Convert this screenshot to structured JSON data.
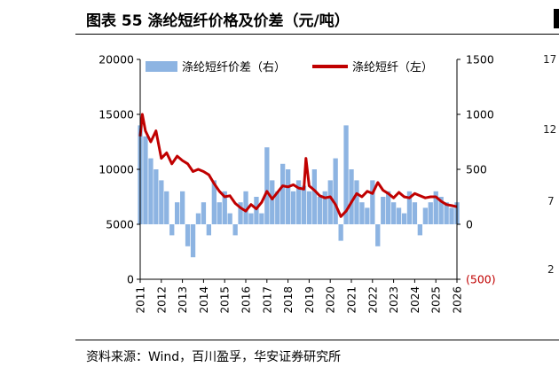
{
  "chart_data": {
    "type": "bar+line",
    "title": "图表 55 涤纶短纤价格及价差（元/吨）",
    "source": "资料来源：Wind，百川盈孚，华安证券研究所",
    "x_tick_labels": [
      "2011",
      "2012",
      "2013",
      "2014",
      "2015",
      "2016",
      "2017",
      "2018",
      "2019",
      "2020",
      "2021",
      "2022",
      "2023",
      "2024",
      "2025",
      "2026"
    ],
    "x_range": [
      2011,
      2026
    ],
    "left_axis": {
      "range": [
        0,
        20000
      ],
      "ticks": [
        0,
        5000,
        10000,
        15000,
        20000
      ]
    },
    "right_axis": {
      "range": [
        -500,
        1500
      ],
      "ticks": [
        -500,
        0,
        500,
        1000,
        1500
      ],
      "tick_labels": [
        "(500)",
        "0",
        "500",
        "1000",
        "1500"
      ],
      "negative_color": "#c00000"
    },
    "series": [
      {
        "name": "涤纶短纤价差（右）",
        "type": "bar",
        "axis": "right",
        "color": "#8db4e2",
        "x": [
          2011.0,
          2011.25,
          2011.5,
          2011.75,
          2012.0,
          2012.25,
          2012.5,
          2012.75,
          2013.0,
          2013.25,
          2013.5,
          2013.75,
          2014.0,
          2014.25,
          2014.5,
          2014.75,
          2015.0,
          2015.25,
          2015.5,
          2015.75,
          2016.0,
          2016.25,
          2016.5,
          2016.75,
          2017.0,
          2017.25,
          2017.5,
          2017.75,
          2018.0,
          2018.25,
          2018.5,
          2018.75,
          2019.0,
          2019.25,
          2019.5,
          2019.75,
          2020.0,
          2020.25,
          2020.5,
          2020.75,
          2021.0,
          2021.25,
          2021.5,
          2021.75,
          2022.0,
          2022.25,
          2022.5,
          2022.75,
          2023.0,
          2023.25,
          2023.5,
          2023.75,
          2024.0,
          2024.25,
          2024.5,
          2024.75,
          2025.0,
          2025.25,
          2025.5,
          2025.75,
          2026.0
        ],
        "values": [
          900,
          800,
          600,
          500,
          400,
          300,
          -100,
          200,
          300,
          -200,
          -300,
          100,
          200,
          -100,
          400,
          200,
          300,
          100,
          -100,
          200,
          300,
          100,
          250,
          100,
          700,
          400,
          300,
          550,
          500,
          300,
          400,
          350,
          300,
          500,
          250,
          300,
          400,
          600,
          -150,
          900,
          500,
          400,
          200,
          150,
          400,
          -200,
          250,
          300,
          200,
          150,
          100,
          300,
          200,
          -100,
          150,
          200,
          300,
          250,
          200,
          150,
          200
        ]
      },
      {
        "name": "涤纶短纤（左）",
        "type": "line",
        "axis": "left",
        "color": "#c00000",
        "x": [
          2011.0,
          2011.1,
          2011.25,
          2011.5,
          2011.75,
          2012.0,
          2012.25,
          2012.5,
          2012.75,
          2013.0,
          2013.25,
          2013.5,
          2013.75,
          2014.0,
          2014.25,
          2014.5,
          2014.75,
          2015.0,
          2015.25,
          2015.5,
          2015.75,
          2016.0,
          2016.25,
          2016.5,
          2016.75,
          2017.0,
          2017.25,
          2017.5,
          2017.75,
          2018.0,
          2018.25,
          2018.5,
          2018.75,
          2018.85,
          2019.0,
          2019.25,
          2019.5,
          2019.75,
          2020.0,
          2020.25,
          2020.5,
          2020.75,
          2021.0,
          2021.25,
          2021.5,
          2021.75,
          2022.0,
          2022.25,
          2022.5,
          2022.75,
          2023.0,
          2023.25,
          2023.5,
          2023.75,
          2024.0,
          2024.25,
          2024.5,
          2024.75,
          2025.0,
          2025.25,
          2025.5,
          2025.75,
          2026.0
        ],
        "values": [
          13000,
          15000,
          13500,
          12500,
          13500,
          11000,
          11500,
          10500,
          11200,
          10800,
          10500,
          9800,
          10000,
          9800,
          9500,
          8700,
          8000,
          7500,
          7600,
          6900,
          6500,
          6200,
          6800,
          6400,
          7000,
          8000,
          7300,
          7900,
          8500,
          8400,
          8600,
          8300,
          8200,
          11000,
          8500,
          8100,
          7600,
          7400,
          7500,
          6800,
          5700,
          6200,
          7000,
          7800,
          7500,
          8000,
          7800,
          8800,
          8100,
          7800,
          7400,
          7900,
          7500,
          7400,
          7800,
          7600,
          7400,
          7500,
          7500,
          7100,
          6800,
          6700,
          6600
        ]
      }
    ]
  }
}
